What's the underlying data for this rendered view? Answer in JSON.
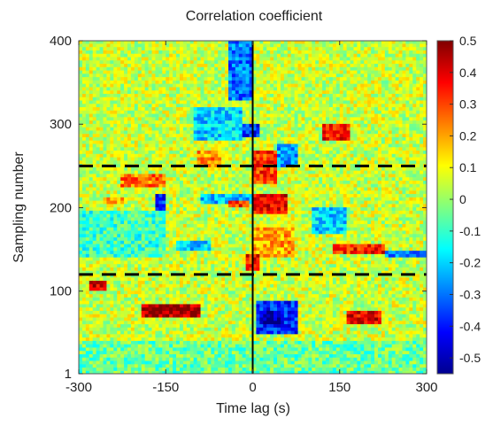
{
  "chart_data": {
    "type": "heatmap",
    "title": "Correlation coefficient",
    "xlabel": "Time lag (s)",
    "ylabel": "Sampling number",
    "xlim": [
      -300,
      300
    ],
    "ylim": [
      1,
      400
    ],
    "x_ticks": [
      -300,
      -150,
      0,
      150,
      300
    ],
    "x_tick_labels": [
      "-300",
      "-150",
      "0",
      "150",
      "300"
    ],
    "y_ticks": [
      1,
      100,
      200,
      300,
      400
    ],
    "y_tick_labels": [
      "1",
      "100",
      "200",
      "300",
      "400"
    ],
    "colorbar": {
      "min": -0.55,
      "max": 0.5,
      "ticks": [
        0.5,
        0.4,
        0.3,
        0.2,
        0.1,
        0,
        -0.1,
        -0.2,
        -0.3,
        -0.4,
        -0.5
      ],
      "tick_labels": [
        "0.5",
        "0.4",
        "0.3",
        "0.2",
        "0.1",
        "0",
        "-0.1",
        "-0.2",
        "-0.3",
        "-0.4",
        "-0.5"
      ],
      "colormap": "jet"
    },
    "reference_lines": {
      "vertical_solid_x": 0,
      "horizontal_dashed_y": [
        250,
        120
      ]
    },
    "background_value": 0.05,
    "regions": [
      {
        "x": [
          -230,
          -150
        ],
        "y": [
          225,
          240
        ],
        "value": 0.25
      },
      {
        "x": [
          -260,
          -215
        ],
        "y": [
          205,
          212
        ],
        "value": 0.2
      },
      {
        "x": [
          -170,
          -150
        ],
        "y": [
          198,
          215
        ],
        "value": -0.38
      },
      {
        "x": [
          -90,
          0
        ],
        "y": [
          205,
          215
        ],
        "value": -0.22
      },
      {
        "x": [
          -40,
          -5
        ],
        "y": [
          200,
          207
        ],
        "value": 0.32
      },
      {
        "x": [
          -10,
          10
        ],
        "y": [
          125,
          145
        ],
        "value": 0.35
      },
      {
        "x": [
          0,
          40
        ],
        "y": [
          230,
          270
        ],
        "value": 0.32
      },
      {
        "x": [
          0,
          60
        ],
        "y": [
          195,
          215
        ],
        "value": 0.38
      },
      {
        "x": [
          0,
          70
        ],
        "y": [
          140,
          175
        ],
        "value": 0.2
      },
      {
        "x": [
          5,
          80
        ],
        "y": [
          50,
          90
        ],
        "value": -0.38
      },
      {
        "x": [
          15,
          45
        ],
        "y": [
          60,
          75
        ],
        "value": -0.5
      },
      {
        "x": [
          -280,
          -250
        ],
        "y": [
          100,
          112
        ],
        "value": 0.42
      },
      {
        "x": [
          -190,
          -90
        ],
        "y": [
          70,
          85
        ],
        "value": 0.45
      },
      {
        "x": [
          -95,
          -55
        ],
        "y": [
          250,
          270
        ],
        "value": 0.22
      },
      {
        "x": [
          -130,
          -70
        ],
        "y": [
          150,
          160
        ],
        "value": -0.2
      },
      {
        "x": [
          -100,
          -20
        ],
        "y": [
          280,
          320
        ],
        "value": -0.2
      },
      {
        "x": [
          -40,
          0
        ],
        "y": [
          330,
          400
        ],
        "value": -0.3
      },
      {
        "x": [
          -15,
          10
        ],
        "y": [
          285,
          300
        ],
        "value": -0.38
      },
      {
        "x": [
          40,
          80
        ],
        "y": [
          250,
          275
        ],
        "value": -0.25
      },
      {
        "x": [
          120,
          170
        ],
        "y": [
          280,
          300
        ],
        "value": 0.35
      },
      {
        "x": [
          100,
          160
        ],
        "y": [
          170,
          200
        ],
        "value": -0.2
      },
      {
        "x": [
          140,
          230
        ],
        "y": [
          145,
          155
        ],
        "value": 0.35
      },
      {
        "x": [
          160,
          220
        ],
        "y": [
          60,
          75
        ],
        "value": 0.4
      },
      {
        "x": [
          230,
          300
        ],
        "y": [
          140,
          150
        ],
        "value": -0.3
      },
      {
        "x": [
          -300,
          -150
        ],
        "y": [
          140,
          195
        ],
        "value": -0.1
      },
      {
        "x": [
          -300,
          300
        ],
        "y": [
          1,
          40
        ],
        "value": -0.05
      }
    ]
  }
}
